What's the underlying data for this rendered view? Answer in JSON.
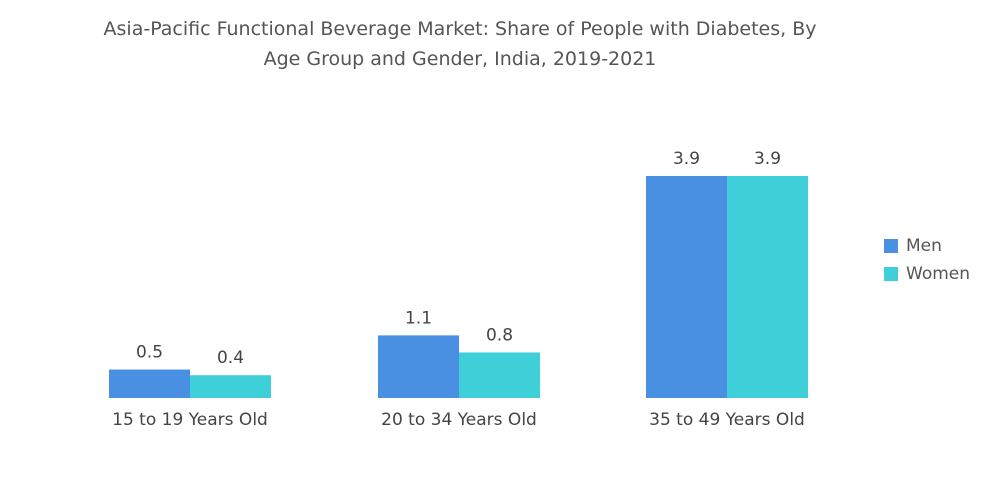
{
  "chart_data": {
    "type": "bar",
    "title_lines": [
      "Asia-Pacific Functional Beverage Market: Share of People with Diabetes, By",
      "Age Group and Gender, India, 2019-2021"
    ],
    "categories": [
      "15 to 19 Years Old",
      "20 to 34 Years Old",
      "35 to 49 Years Old"
    ],
    "series": [
      {
        "name": "Men",
        "values": [
          0.5,
          1.1,
          3.9
        ],
        "labels": [
          "0.5",
          "1.1",
          "3.9"
        ],
        "color": "#4a90e2"
      },
      {
        "name": "Women",
        "values": [
          0.4,
          0.8,
          3.9
        ],
        "labels": [
          "0.4",
          "0.8",
          "3.9"
        ],
        "color": "#3ecfd9"
      }
    ],
    "ylim": [
      0,
      3.9
    ],
    "xlabel": "",
    "ylabel": "",
    "grid": false,
    "legend_position": "right"
  }
}
